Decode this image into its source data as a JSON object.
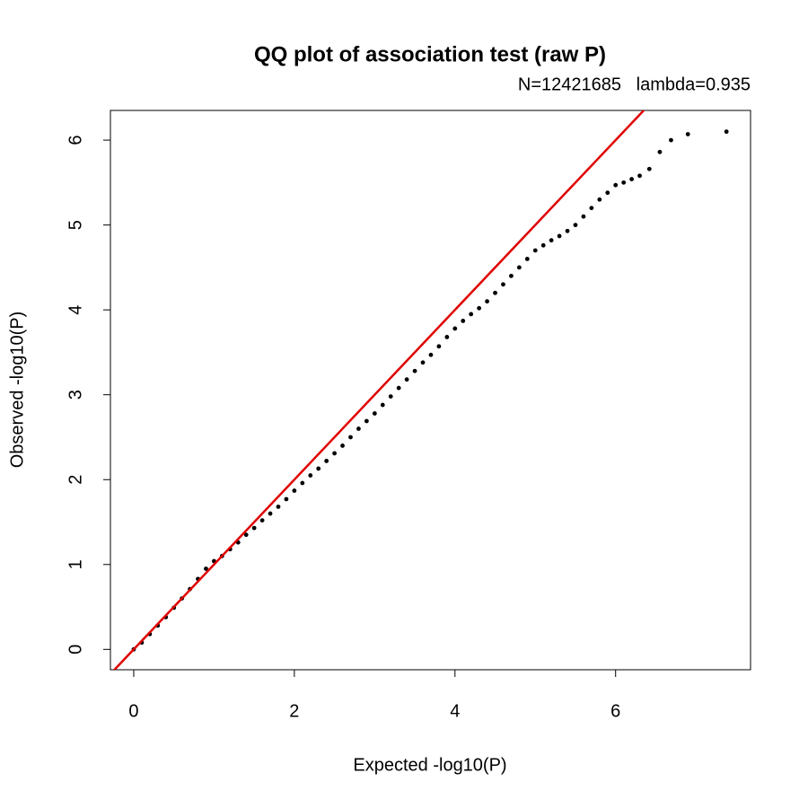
{
  "chart_data": {
    "type": "scatter",
    "title": "QQ plot of association test (raw P)",
    "subtitle": "N=12421685   lambda=0.935",
    "x_label": "Expected -log10(P)",
    "y_label": "Observed -log10(P)",
    "xlim": [
      -0.29,
      7.68
    ],
    "ylim": [
      -0.24,
      6.35
    ],
    "xticks": [
      0,
      2,
      4,
      6
    ],
    "yticks": [
      0,
      1,
      2,
      3,
      4,
      5,
      6
    ],
    "grid": false,
    "color": "#000000",
    "reference_line": {
      "slope": 1,
      "intercept": 0,
      "color": "#e00000"
    },
    "x": [
      0.0,
      0.1,
      0.2,
      0.3,
      0.4,
      0.5,
      0.6,
      0.7,
      0.8,
      0.9,
      1.0,
      1.1,
      1.2,
      1.3,
      1.4,
      1.5,
      1.6,
      1.7,
      1.8,
      1.9,
      2.0,
      2.1,
      2.2,
      2.3,
      2.4,
      2.5,
      2.6,
      2.7,
      2.8,
      2.9,
      3.0,
      3.1,
      3.2,
      3.3,
      3.4,
      3.5,
      3.6,
      3.7,
      3.8,
      3.9,
      4.0,
      4.1,
      4.2,
      4.3,
      4.4,
      4.5,
      4.6,
      4.7,
      4.8,
      4.9,
      5.0,
      5.1,
      5.2,
      5.3,
      5.4,
      5.5,
      5.6,
      5.7,
      5.8,
      5.9,
      6.0,
      6.1,
      6.2,
      6.3,
      6.42,
      6.55,
      6.69,
      6.9,
      7.38
    ],
    "values": [
      0.0,
      0.08,
      0.18,
      0.28,
      0.38,
      0.49,
      0.6,
      0.71,
      0.83,
      0.95,
      1.04,
      1.1,
      1.18,
      1.26,
      1.35,
      1.43,
      1.52,
      1.6,
      1.68,
      1.77,
      1.87,
      1.96,
      2.05,
      2.13,
      2.22,
      2.31,
      2.4,
      2.5,
      2.6,
      2.69,
      2.78,
      2.88,
      2.98,
      3.08,
      3.18,
      3.28,
      3.38,
      3.47,
      3.57,
      3.68,
      3.78,
      3.87,
      3.95,
      4.02,
      4.1,
      4.2,
      4.3,
      4.4,
      4.5,
      4.6,
      4.7,
      4.76,
      4.82,
      4.87,
      4.93,
      5.0,
      5.1,
      5.2,
      5.3,
      5.38,
      5.47,
      5.5,
      5.54,
      5.58,
      5.66,
      5.86,
      6.0,
      6.07,
      6.1
    ]
  }
}
